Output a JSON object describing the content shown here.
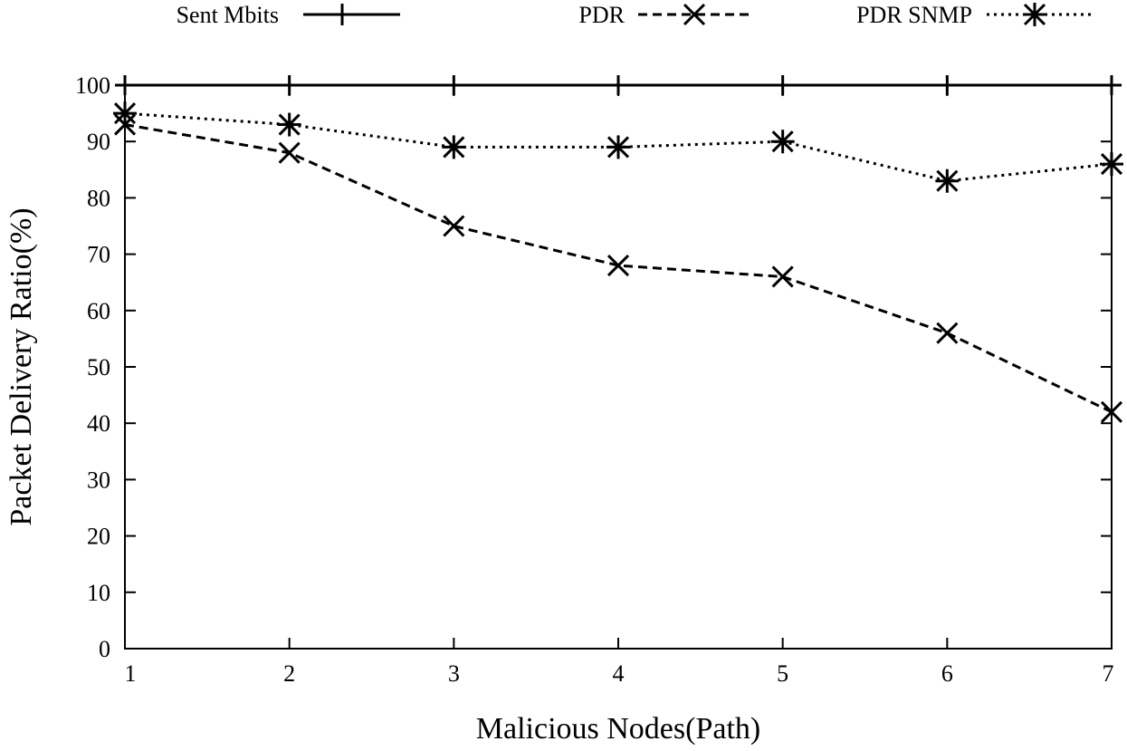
{
  "chart_data": {
    "type": "line",
    "title": "",
    "xlabel": "Malicious Nodes(Path)",
    "ylabel": "Packet Delivery Ratio(%)",
    "categories": [
      "1",
      "2",
      "3",
      "4",
      "5",
      "6",
      "7"
    ],
    "x": [
      1,
      2,
      3,
      4,
      5,
      6,
      7
    ],
    "xlim": [
      1,
      7
    ],
    "ylim": [
      0,
      100
    ],
    "yticks": [
      0,
      10,
      20,
      30,
      40,
      50,
      60,
      70,
      80,
      90,
      100
    ],
    "legend_position": "top",
    "series": [
      {
        "name": "Sent Mbits",
        "values": [
          100,
          100,
          100,
          100,
          100,
          100,
          100
        ],
        "line_style": "solid",
        "marker": "plus"
      },
      {
        "name": "PDR",
        "values": [
          93,
          88,
          75,
          68,
          66,
          56,
          42
        ],
        "line_style": "dashed",
        "marker": "x"
      },
      {
        "name": "PDR SNMP",
        "values": [
          95,
          93,
          89,
          89,
          90,
          83,
          86
        ],
        "line_style": "dotted",
        "marker": "star"
      }
    ]
  }
}
